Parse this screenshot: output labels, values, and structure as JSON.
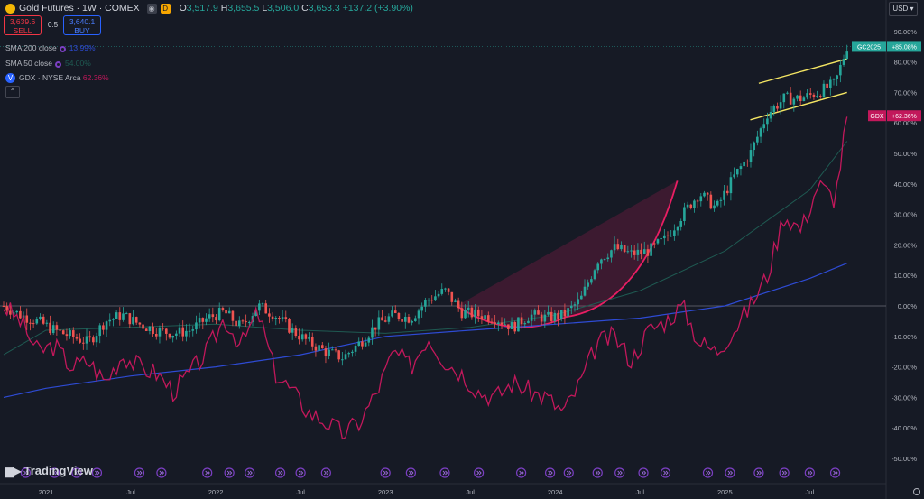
{
  "header": {
    "symbol_title": "Gold Futures · 1W · COMEX",
    "ohlc": [
      {
        "k": "O",
        "v": "3,517.9"
      },
      {
        "k": "H",
        "v": "3,655.5"
      },
      {
        "k": "L",
        "v": "3,506.0"
      },
      {
        "k": "C",
        "v": "3,653.3"
      },
      {
        "k": "",
        "v": "+137.2 (+3.90%)"
      }
    ],
    "sell_price": "3,639.6",
    "sell_label": "SELL",
    "spread": "0.5",
    "buy_price": "3,640.1",
    "buy_label": "BUY",
    "currency": "USD"
  },
  "indicators": [
    {
      "name": "SMA 200 close",
      "value": "13.99%",
      "color": "#2e4bd4"
    },
    {
      "name": "SMA 50 close",
      "value": "54.00%",
      "color": "#1f5a52"
    },
    {
      "name": "GDX · NYSE Arca",
      "value": "62.36%",
      "color": "#c2185b"
    }
  ],
  "branding": "TradingView",
  "colors": {
    "up": "#26a69a",
    "down": "#ef5350",
    "gdx": "#c2185b",
    "sma200": "#2e4bd4",
    "sma50": "#1f5a52",
    "channel": "#f5e663",
    "cup": "#e91e63"
  },
  "chart_data": {
    "type": "line",
    "y_axis_unit": "percent",
    "ylim": [
      -55,
      95
    ],
    "y_ticks": [
      "90.00%",
      "80.00%",
      "70.00%",
      "60.00%",
      "50.00%",
      "40.00%",
      "30.00%",
      "20.00%",
      "10.00%",
      "0.00%",
      "-10.00%",
      "-20.00%",
      "-30.00%",
      "-40.00%",
      "-50.00%"
    ],
    "y_tick_values": [
      90,
      80,
      70,
      60,
      50,
      40,
      30,
      20,
      10,
      0,
      -10,
      -20,
      -30,
      -40,
      -50
    ],
    "x_range": [
      2020.75,
      2025.78
    ],
    "x_ticks": [
      {
        "label": "2021",
        "t": 2021.0
      },
      {
        "label": "Jul",
        "t": 2021.5
      },
      {
        "label": "2022",
        "t": 2022.0
      },
      {
        "label": "Jul",
        "t": 2022.5
      },
      {
        "label": "2023",
        "t": 2023.0
      },
      {
        "label": "Jul",
        "t": 2023.5
      },
      {
        "label": "2024",
        "t": 2024.0
      },
      {
        "label": "Jul",
        "t": 2024.5
      },
      {
        "label": "2025",
        "t": 2025.0
      },
      {
        "label": "Jul",
        "t": 2025.5
      }
    ],
    "series": [
      {
        "name": "Gold Futures",
        "style": "candles",
        "t": [
          2020.75,
          2020.85,
          2020.95,
          2021.05,
          2021.15,
          2021.25,
          2021.35,
          2021.45,
          2021.55,
          2021.65,
          2021.75,
          2021.85,
          2021.95,
          2022.05,
          2022.15,
          2022.25,
          2022.35,
          2022.45,
          2022.55,
          2022.65,
          2022.75,
          2022.85,
          2022.95,
          2023.05,
          2023.15,
          2023.25,
          2023.35,
          2023.45,
          2023.55,
          2023.65,
          2023.75,
          2023.85,
          2023.95,
          2024.05,
          2024.15,
          2024.25,
          2024.35,
          2024.45,
          2024.55,
          2024.65,
          2024.75,
          2024.85,
          2024.95,
          2025.05,
          2025.15,
          2025.25,
          2025.35,
          2025.45,
          2025.55,
          2025.65,
          2025.72
        ],
        "values": [
          0,
          -3,
          -5,
          -8,
          -10,
          -12,
          -5,
          -3,
          -6,
          -8,
          -9,
          -8,
          -4,
          -2,
          -7,
          0,
          -3,
          -8,
          -12,
          -15,
          -17,
          -12,
          -6,
          -3,
          -4,
          2,
          5,
          -2,
          -3,
          -4,
          -7,
          -3,
          -4,
          -3,
          2,
          15,
          19,
          17,
          18,
          22,
          30,
          37,
          32,
          42,
          50,
          63,
          68,
          68,
          70,
          73,
          85
        ]
      },
      {
        "name": "GDX · NYSE Arca",
        "style": "line",
        "t": [
          2020.75,
          2020.85,
          2020.95,
          2021.05,
          2021.15,
          2021.25,
          2021.35,
          2021.45,
          2021.55,
          2021.65,
          2021.75,
          2021.85,
          2021.95,
          2022.05,
          2022.15,
          2022.25,
          2022.35,
          2022.45,
          2022.55,
          2022.65,
          2022.75,
          2022.85,
          2022.95,
          2023.05,
          2023.15,
          2023.25,
          2023.35,
          2023.45,
          2023.55,
          2023.65,
          2023.75,
          2023.85,
          2023.95,
          2024.05,
          2024.15,
          2024.25,
          2024.35,
          2024.45,
          2024.55,
          2024.65,
          2024.75,
          2024.85,
          2024.95,
          2025.05,
          2025.15,
          2025.25,
          2025.35,
          2025.45,
          2025.55,
          2025.65,
          2025.72
        ],
        "values": [
          0,
          -5,
          -15,
          -13,
          -20,
          -18,
          -25,
          -16,
          -20,
          -22,
          -28,
          -22,
          -15,
          -4,
          -13,
          -2,
          -22,
          -28,
          -35,
          -38,
          -42,
          -38,
          -28,
          -15,
          -20,
          -10,
          -18,
          -22,
          -28,
          -30,
          -25,
          -28,
          -30,
          -35,
          -25,
          -12,
          -10,
          -18,
          -8,
          -5,
          0,
          -12,
          -15,
          -8,
          0,
          10,
          30,
          25,
          40,
          35,
          62
        ]
      },
      {
        "name": "SMA 200 close",
        "style": "line",
        "t": [
          2020.75,
          2021.0,
          2021.5,
          2022.0,
          2022.5,
          2023.0,
          2023.5,
          2024.0,
          2024.5,
          2025.0,
          2025.5,
          2025.72
        ],
        "values": [
          -30,
          -27,
          -23,
          -20,
          -16,
          -10,
          -8,
          -6,
          -4,
          0,
          9,
          14
        ]
      },
      {
        "name": "SMA 50 close",
        "style": "line",
        "t": [
          2020.75,
          2021.0,
          2021.5,
          2022.0,
          2022.5,
          2023.0,
          2023.5,
          2024.0,
          2024.5,
          2025.0,
          2025.5,
          2025.72
        ],
        "values": [
          -16,
          -8,
          -7,
          -6,
          -8,
          -9,
          -7,
          -3,
          5,
          18,
          38,
          54
        ]
      }
    ],
    "last_value_labels": [
      {
        "series": "GC2025",
        "text": "+85.08%",
        "value": 85.08,
        "color": "#26a69a"
      },
      {
        "series": "GDX",
        "text": "+62.36%",
        "value": 62.36,
        "color": "#c2185b"
      }
    ],
    "drawings": [
      {
        "name": "Rising channel",
        "upper": [
          [
            2025.2,
            73
          ],
          [
            2025.72,
            81
          ]
        ],
        "lower": [
          [
            2025.15,
            61
          ],
          [
            2025.72,
            70
          ]
        ]
      },
      {
        "name": "Cup",
        "from": [
          2023.42,
          0
        ],
        "bottom": [
          2023.85,
          -6
        ],
        "to": [
          2024.72,
          41
        ]
      }
    ],
    "event_markers_t": [
      2020.88,
      2021.05,
      2021.18,
      2021.3,
      2021.55,
      2021.68,
      2021.95,
      2022.08,
      2022.2,
      2022.38,
      2022.5,
      2022.65,
      2023.0,
      2023.15,
      2023.35,
      2023.55,
      2023.8,
      2023.97,
      2024.08,
      2024.25,
      2024.38,
      2024.52,
      2024.65,
      2024.9,
      2025.03,
      2025.2,
      2025.35,
      2025.5,
      2025.65
    ]
  }
}
